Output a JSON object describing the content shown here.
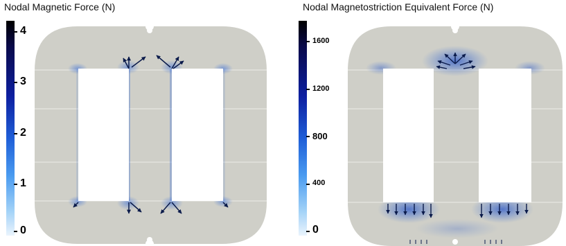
{
  "panels": [
    {
      "title": "Nodal Magnetic Force (N)",
      "colorbar_ticks": [
        "4",
        "3",
        "2",
        "1",
        "0"
      ],
      "colorbar_range": [
        0,
        4.2
      ],
      "colors": {
        "core": "#cfcfc8",
        "window": "#ffffff",
        "arrow": "#0a1a4a",
        "highlight": "#3b6fd8"
      }
    },
    {
      "title": "Nodal Magnetostriction Equivalent Force (N)",
      "colorbar_ticks": [
        "1600",
        "1200",
        "800",
        "400",
        "0"
      ],
      "colorbar_range": [
        0,
        1750
      ],
      "colors": {
        "core": "#cfcfc8",
        "window": "#ffffff",
        "arrow": "#0a1a4a",
        "highlight": "#3b6fd8"
      }
    }
  ]
}
